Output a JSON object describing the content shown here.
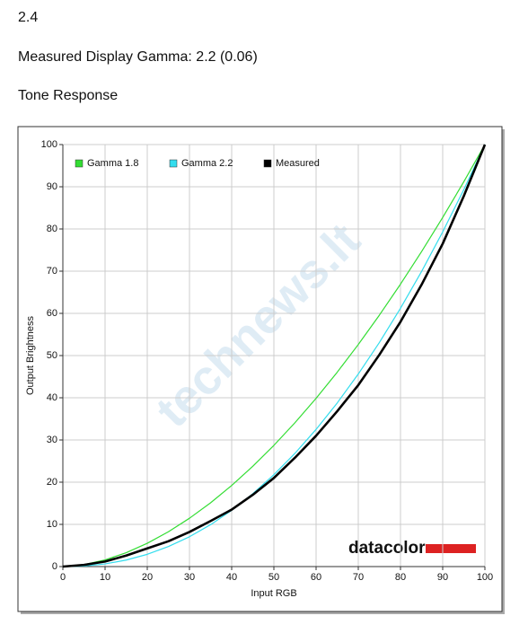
{
  "header_lines": [
    "2.4",
    "Measured Display Gamma: 2.2 (0.06)",
    "Tone Response"
  ],
  "chart_data": {
    "type": "line",
    "x_label": "Input RGB",
    "y_label": "Output Brightness",
    "x": [
      0,
      5,
      10,
      15,
      20,
      25,
      30,
      35,
      40,
      45,
      50,
      55,
      60,
      65,
      70,
      75,
      80,
      85,
      90,
      95,
      100
    ],
    "series": [
      {
        "name": "Gamma 1.8",
        "color": "#33dd33",
        "width": 1.2,
        "values": [
          0,
          0.46,
          1.58,
          3.29,
          5.52,
          8.25,
          11.45,
          15.11,
          19.22,
          23.76,
          28.72,
          34.09,
          39.87,
          46.05,
          52.62,
          59.58,
          66.92,
          74.64,
          82.72,
          91.18,
          100
        ]
      },
      {
        "name": "Gamma 2.2",
        "color": "#33ddee",
        "width": 1.2,
        "values": [
          0,
          0.14,
          0.63,
          1.54,
          2.9,
          4.74,
          7.07,
          9.93,
          13.32,
          17.26,
          21.76,
          26.84,
          32.51,
          38.76,
          45.63,
          53.1,
          61.2,
          69.94,
          79.31,
          89.32,
          100
        ]
      },
      {
        "name": "Measured",
        "color": "#000000",
        "width": 2.6,
        "values": [
          0,
          0.4,
          1.2,
          2.6,
          4.3,
          6,
          8.2,
          10.8,
          13.5,
          17,
          21,
          25.8,
          31,
          36.8,
          43,
          50.2,
          58,
          66.8,
          76.5,
          87.8,
          100
        ]
      }
    ],
    "xlim": [
      0,
      100
    ],
    "ylim": [
      0,
      100
    ],
    "xticks": [
      0,
      10,
      20,
      30,
      40,
      50,
      60,
      70,
      80,
      90,
      100
    ],
    "yticks": [
      0,
      10,
      20,
      30,
      40,
      50,
      60,
      70,
      80,
      90,
      100
    ],
    "grid": true,
    "legend": "top-left",
    "logo_text": "datacolor",
    "watermark": "technews.lt"
  }
}
